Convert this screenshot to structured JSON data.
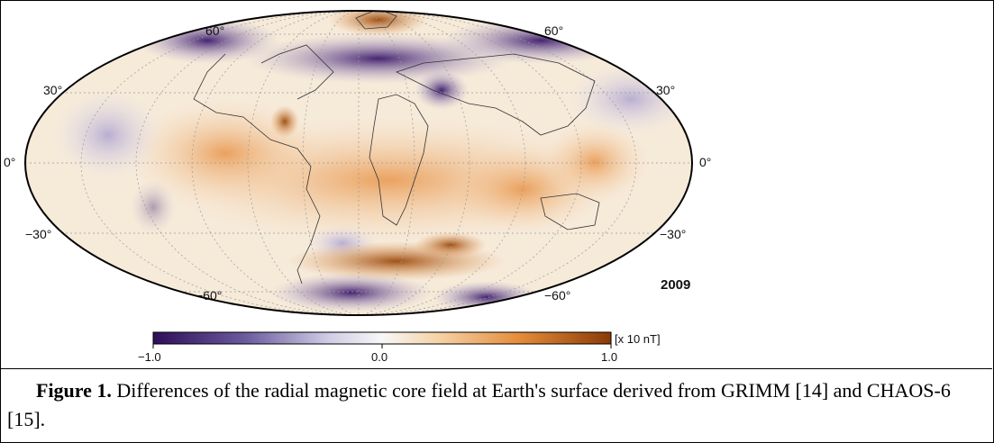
{
  "figure": {
    "lat_labels": [
      "60°",
      "30°",
      "0°",
      "−30°",
      "−60°"
    ],
    "year": "2009",
    "colorbar": {
      "ticks": [
        "−1.0",
        "0.0",
        "1.0"
      ],
      "unit": "[x 10 nT]",
      "colors": {
        "negative": "#2f0e57",
        "zero": "#f7f7f7",
        "positive": "#8a3a06"
      }
    }
  },
  "caption": {
    "label": "Figure 1.",
    "text": " Differences of the radial magnetic core field at Earth's surface derived from GRIMM [14] and CHAOS-6 [15]."
  }
}
